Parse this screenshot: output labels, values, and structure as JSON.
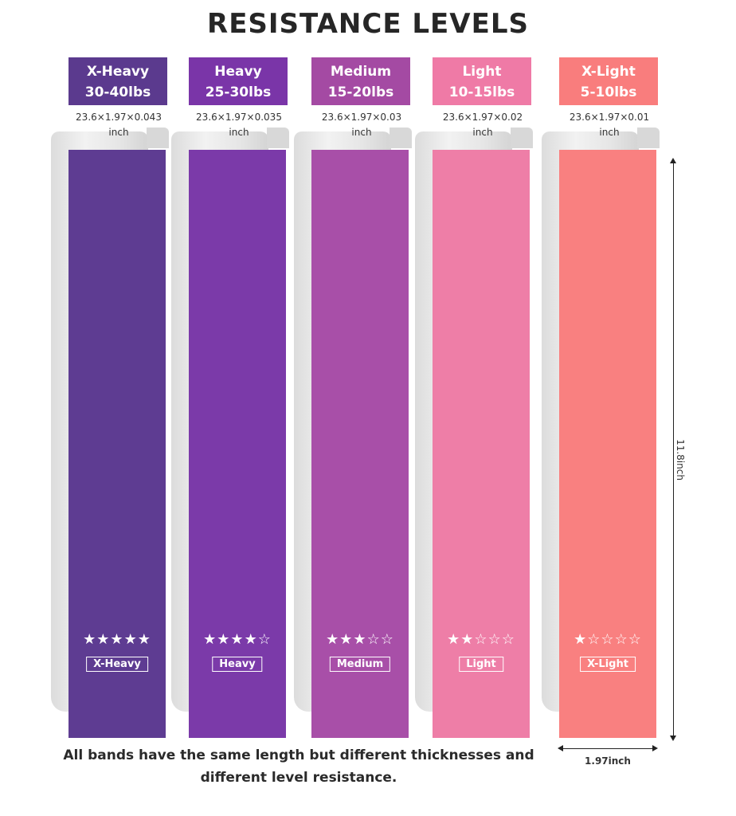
{
  "title": "RESISTANCE LEVELS",
  "levels": [
    {
      "name": "X-Heavy",
      "range": "30-40lbs",
      "dims_1": "23.6×1.97×0.043",
      "dims_2": "inch",
      "stars": "★★★★★",
      "rating": 5,
      "tag": "X-Heavy",
      "label_color": "#5b3a8e",
      "band_color": "#5e3c92"
    },
    {
      "name": "Heavy",
      "range": "25-30lbs",
      "dims_1": "23.6×1.97×0.035",
      "dims_2": "inch",
      "stars": "★★★★☆",
      "rating": 4,
      "tag": "Heavy",
      "label_color": "#7a35a8",
      "band_color": "#7b3aa9"
    },
    {
      "name": "Medium",
      "range": "15-20lbs",
      "dims_1": "23.6×1.97×0.03",
      "dims_2": "inch",
      "stars": "★★★☆☆",
      "rating": 3,
      "tag": "Medium",
      "label_color": "#a44aa3",
      "band_color": "#a84fa8"
    },
    {
      "name": "Light",
      "range": "10-15lbs",
      "dims_1": "23.6×1.97×0.02",
      "dims_2": "inch",
      "stars": "★★☆☆☆",
      "rating": 2,
      "tag": "Light",
      "label_color": "#ef7aa6",
      "band_color": "#ee7ea7"
    },
    {
      "name": "X-Light",
      "range": "5-10lbs",
      "dims_1": "23.6×1.97×0.01",
      "dims_2": "inch",
      "stars": "★☆☆☆☆",
      "rating": 1,
      "tag": "X-Light",
      "label_color": "#f97d7d",
      "band_color": "#f98080"
    }
  ],
  "height_label": "11.8inch",
  "width_label": "1.97inch",
  "footnote": {
    "line_1": "All bands have the same length but different thicknesses and",
    "line_2": "different level resistance."
  }
}
